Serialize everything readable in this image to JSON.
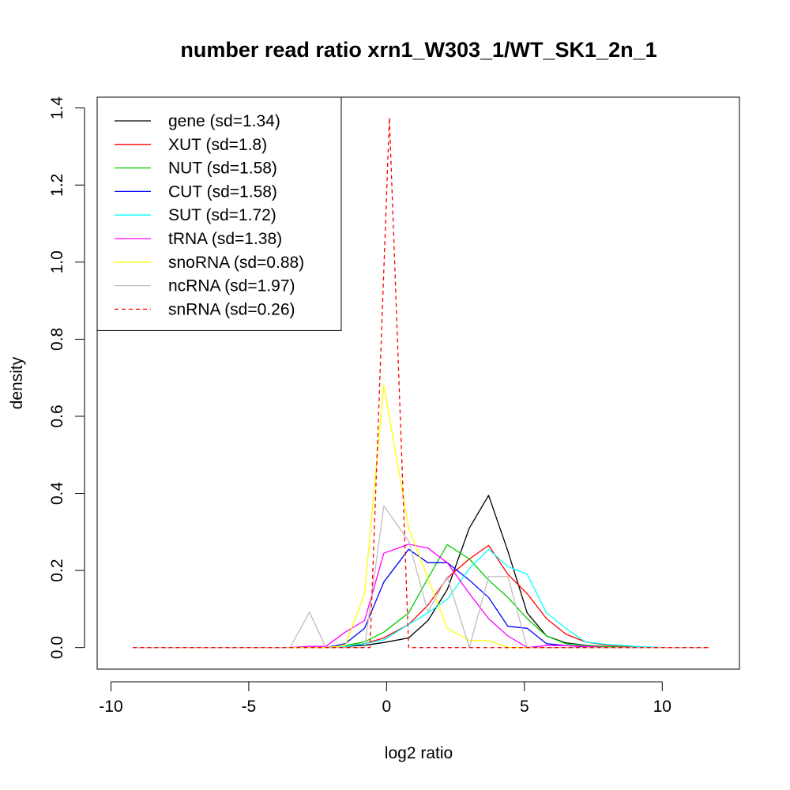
{
  "chart_data": {
    "type": "line",
    "title": "number read ratio xrn1_W303_1/WT_SK1_2n_1",
    "xlabel": "log2 ratio",
    "ylabel": "density",
    "xlim": [
      -10.5,
      12.8
    ],
    "ylim": [
      -0.056,
      1.428
    ],
    "xticks": [
      -10,
      -5,
      0,
      5,
      10
    ],
    "yticks": [
      0.0,
      0.2,
      0.4,
      0.6,
      0.8,
      1.0,
      1.2,
      1.4
    ],
    "xtick_labels": [
      "-10",
      "-5",
      "0",
      "5",
      "10"
    ],
    "ytick_labels": [
      "0.0",
      "0.2",
      "0.4",
      "0.6",
      "0.8",
      "1.0",
      "1.2",
      "1.4"
    ],
    "grid": false,
    "legend_position": "top-left",
    "series": [
      {
        "name": "gene (sd=1.34)",
        "color": "#000000",
        "dash": "solid",
        "x": [
          -9.2,
          -3.5,
          -2.8,
          -2.2,
          -1.5,
          -0.8,
          -0.1,
          0.8,
          1.5,
          2.2,
          3.0,
          3.7,
          4.4,
          5.1,
          5.8,
          6.5,
          7.2,
          8.0,
          9.0,
          10.0,
          11.7
        ],
        "y": [
          0,
          0,
          0,
          0,
          0.003,
          0.006,
          0.013,
          0.025,
          0.07,
          0.15,
          0.31,
          0.395,
          0.25,
          0.09,
          0.03,
          0.012,
          0.006,
          0.002,
          0,
          0,
          0
        ]
      },
      {
        "name": "XUT (sd=1.8)",
        "color": "#ff0000",
        "dash": "solid",
        "x": [
          -9.2,
          -3.5,
          -2.8,
          -2.2,
          -1.5,
          -0.8,
          -0.1,
          0.8,
          1.5,
          2.2,
          3.0,
          3.7,
          4.4,
          5.1,
          5.8,
          6.5,
          7.2,
          8.0,
          9.0,
          10.0,
          11.7
        ],
        "y": [
          0,
          0,
          0,
          0,
          0.005,
          0.01,
          0.025,
          0.06,
          0.11,
          0.18,
          0.23,
          0.265,
          0.19,
          0.14,
          0.075,
          0.035,
          0.015,
          0.006,
          0.002,
          0,
          0
        ]
      },
      {
        "name": "NUT (sd=1.58)",
        "color": "#00cd00",
        "dash": "solid",
        "x": [
          -9.2,
          -3.5,
          -2.8,
          -2.2,
          -1.5,
          -0.8,
          -0.1,
          0.8,
          1.5,
          2.2,
          3.0,
          3.7,
          4.4,
          5.1,
          5.8,
          6.5,
          7.2,
          8.0,
          9.0,
          10.0,
          11.7
        ],
        "y": [
          0,
          0,
          0,
          0,
          0.005,
          0.015,
          0.04,
          0.09,
          0.18,
          0.267,
          0.23,
          0.175,
          0.13,
          0.075,
          0.03,
          0.01,
          0.005,
          0.002,
          0,
          0,
          0
        ]
      },
      {
        "name": "CUT (sd=1.58)",
        "color": "#0000ff",
        "dash": "solid",
        "x": [
          -9.2,
          -3.5,
          -2.8,
          -2.2,
          -1.5,
          -0.8,
          -0.1,
          0.8,
          1.5,
          2.2,
          3.0,
          3.7,
          4.4,
          5.1,
          5.8,
          6.5,
          7.2,
          8.0,
          9.0,
          10.0,
          11.7
        ],
        "y": [
          0,
          0,
          0,
          0,
          0.01,
          0.05,
          0.17,
          0.255,
          0.22,
          0.22,
          0.175,
          0.13,
          0.055,
          0.05,
          0.01,
          0.005,
          0.002,
          0,
          0,
          0,
          0
        ]
      },
      {
        "name": "SUT (sd=1.72)",
        "color": "#00ffff",
        "dash": "solid",
        "x": [
          -9.2,
          -3.5,
          -2.8,
          -2.2,
          -1.5,
          -0.8,
          -0.1,
          0.8,
          1.5,
          2.2,
          3.0,
          3.7,
          4.4,
          5.1,
          5.8,
          6.5,
          7.2,
          8.0,
          9.0,
          10.0,
          11.7
        ],
        "y": [
          0,
          0,
          0,
          0,
          0.003,
          0.01,
          0.02,
          0.06,
          0.09,
          0.125,
          0.205,
          0.255,
          0.21,
          0.19,
          0.09,
          0.05,
          0.015,
          0.008,
          0.003,
          0,
          0
        ]
      },
      {
        "name": "tRNA (sd=1.38)",
        "color": "#ff00ff",
        "dash": "solid",
        "x": [
          -9.2,
          -3.5,
          -2.8,
          -2.2,
          -1.5,
          -0.8,
          -0.1,
          0.8,
          1.5,
          2.2,
          3.0,
          3.7,
          4.4,
          5.1,
          5.8,
          6.5,
          7.2,
          8.0,
          9.0,
          10.0,
          11.7
        ],
        "y": [
          0,
          0,
          0.003,
          0.003,
          0.04,
          0.07,
          0.245,
          0.268,
          0.258,
          0.22,
          0.14,
          0.075,
          0.03,
          0,
          0.005,
          0.005,
          0.003,
          0,
          0,
          0,
          0
        ]
      },
      {
        "name": "snoRNA (sd=0.88)",
        "color": "#ffff00",
        "dash": "solid",
        "x": [
          -9.2,
          -3.5,
          -2.8,
          -2.2,
          -1.5,
          -0.8,
          -0.1,
          0.8,
          1.5,
          2.2,
          3.0,
          3.7,
          4.4,
          5.1,
          5.8,
          6.5,
          7.2,
          8.0,
          9.0,
          10.0,
          11.7
        ],
        "y": [
          0,
          0,
          0,
          0,
          0.005,
          0.14,
          0.68,
          0.31,
          0.18,
          0.05,
          0.018,
          0.018,
          0,
          0,
          0,
          0,
          0,
          0,
          0,
          0,
          0
        ]
      },
      {
        "name": "ncRNA (sd=1.97)",
        "color": "#bebebe",
        "dash": "solid",
        "x": [
          -9.2,
          -3.5,
          -2.8,
          -2.2,
          -1.5,
          -0.8,
          -0.1,
          0.8,
          1.5,
          2.2,
          3.0,
          3.7,
          4.4,
          5.1,
          5.8,
          6.5,
          7.2,
          8.0,
          9.0,
          10.0,
          11.7
        ],
        "y": [
          0,
          0,
          0.092,
          0,
          0,
          0,
          0.368,
          0.276,
          0.092,
          0.184,
          0,
          0.184,
          0.184,
          0,
          0,
          0,
          0,
          0,
          0,
          0,
          0
        ]
      },
      {
        "name": "snRNA (sd=0.26)",
        "color": "#ff0000",
        "dash": "dashed",
        "x": [
          -9.2,
          -3.5,
          -2.8,
          -2.2,
          -1.5,
          -0.6,
          0.1,
          0.8,
          1.5,
          2.2,
          3.0,
          3.7,
          4.4,
          5.1,
          5.8,
          6.5,
          7.2,
          8.0,
          9.0,
          10.0,
          11.7
        ],
        "y": [
          0,
          0,
          0,
          0,
          0,
          0,
          1.375,
          0,
          0,
          0,
          0,
          0,
          0,
          0,
          0,
          0,
          0,
          0,
          0,
          0,
          0
        ]
      }
    ]
  }
}
